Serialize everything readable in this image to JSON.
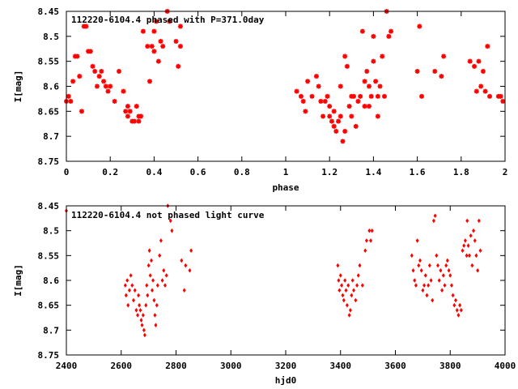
{
  "chart_data": [
    {
      "type": "scatter",
      "title": "112220-6104.4 phased with P=371.0day",
      "xlabel": "phase",
      "ylabel": "I[mag]",
      "xlim": [
        0,
        2
      ],
      "ylim": [
        8.75,
        8.45
      ],
      "y_inverted": true,
      "x_ticks": [
        "0",
        "0.2",
        "0.4",
        "0.6",
        "0.8",
        "1",
        "1.2",
        "1.4",
        "1.6",
        "1.8",
        "2"
      ],
      "y_ticks": [
        "8.45",
        "8.5",
        "8.55",
        "8.6",
        "8.65",
        "8.7",
        "8.75"
      ],
      "marker_color": "#ff0000",
      "grid": false,
      "series": [
        {
          "points": [
            [
              0.0,
              8.63
            ],
            [
              0.01,
              8.62
            ],
            [
              0.02,
              8.63
            ],
            [
              0.03,
              8.59
            ],
            [
              0.04,
              8.54
            ],
            [
              0.05,
              8.54
            ],
            [
              0.06,
              8.58
            ],
            [
              0.07,
              8.65
            ],
            [
              0.08,
              8.48
            ],
            [
              0.09,
              8.48
            ],
            [
              0.1,
              8.53
            ],
            [
              0.11,
              8.53
            ],
            [
              0.12,
              8.56
            ],
            [
              0.13,
              8.57
            ],
            [
              0.14,
              8.6
            ],
            [
              0.15,
              8.58
            ],
            [
              0.16,
              8.57
            ],
            [
              0.17,
              8.59
            ],
            [
              0.18,
              8.6
            ],
            [
              0.19,
              8.61
            ],
            [
              0.2,
              8.6
            ],
            [
              0.22,
              8.63
            ],
            [
              0.24,
              8.57
            ],
            [
              0.26,
              8.61
            ],
            [
              0.27,
              8.65
            ],
            [
              0.28,
              8.64
            ],
            [
              0.28,
              8.66
            ],
            [
              0.29,
              8.65
            ],
            [
              0.3,
              8.67
            ],
            [
              0.31,
              8.67
            ],
            [
              0.32,
              8.64
            ],
            [
              0.33,
              8.66
            ],
            [
              0.33,
              8.67
            ],
            [
              0.34,
              8.66
            ],
            [
              0.35,
              8.49
            ],
            [
              0.37,
              8.52
            ],
            [
              0.38,
              8.59
            ],
            [
              0.39,
              8.52
            ],
            [
              0.4,
              8.49
            ],
            [
              0.4,
              8.53
            ],
            [
              0.41,
              8.47
            ],
            [
              0.42,
              8.55
            ],
            [
              0.43,
              8.51
            ],
            [
              0.44,
              8.52
            ],
            [
              0.46,
              8.45
            ],
            [
              0.47,
              8.47
            ],
            [
              0.48,
              8.44
            ],
            [
              0.5,
              8.51
            ],
            [
              0.51,
              8.56
            ],
            [
              0.52,
              8.52
            ],
            [
              0.52,
              8.48
            ],
            [
              1.05,
              8.61
            ],
            [
              1.07,
              8.62
            ],
            [
              1.08,
              8.63
            ],
            [
              1.09,
              8.65
            ],
            [
              1.1,
              8.59
            ],
            [
              1.12,
              8.62
            ],
            [
              1.14,
              8.58
            ],
            [
              1.15,
              8.6
            ],
            [
              1.16,
              8.63
            ],
            [
              1.17,
              8.66
            ],
            [
              1.18,
              8.63
            ],
            [
              1.19,
              8.62
            ],
            [
              1.2,
              8.64
            ],
            [
              1.2,
              8.66
            ],
            [
              1.21,
              8.67
            ],
            [
              1.22,
              8.68
            ],
            [
              1.22,
              8.65
            ],
            [
              1.23,
              8.69
            ],
            [
              1.24,
              8.67
            ],
            [
              1.25,
              8.6
            ],
            [
              1.25,
              8.66
            ],
            [
              1.26,
              8.71
            ],
            [
              1.27,
              8.54
            ],
            [
              1.27,
              8.69
            ],
            [
              1.28,
              8.56
            ],
            [
              1.29,
              8.64
            ],
            [
              1.3,
              8.62
            ],
            [
              1.3,
              8.66
            ],
            [
              1.31,
              8.62
            ],
            [
              1.32,
              8.68
            ],
            [
              1.33,
              8.63
            ],
            [
              1.34,
              8.62
            ],
            [
              1.35,
              8.49
            ],
            [
              1.36,
              8.59
            ],
            [
              1.36,
              8.64
            ],
            [
              1.37,
              8.57
            ],
            [
              1.38,
              8.6
            ],
            [
              1.38,
              8.64
            ],
            [
              1.39,
              8.62
            ],
            [
              1.4,
              8.5
            ],
            [
              1.4,
              8.55
            ],
            [
              1.41,
              8.59
            ],
            [
              1.42,
              8.62
            ],
            [
              1.42,
              8.66
            ],
            [
              1.43,
              8.6
            ],
            [
              1.44,
              8.54
            ],
            [
              1.45,
              8.62
            ],
            [
              1.46,
              8.45
            ],
            [
              1.47,
              8.5
            ],
            [
              1.48,
              8.49
            ],
            [
              1.6,
              8.57
            ],
            [
              1.61,
              8.48
            ],
            [
              1.62,
              8.62
            ],
            [
              1.68,
              8.57
            ],
            [
              1.71,
              8.58
            ],
            [
              1.72,
              8.54
            ],
            [
              1.84,
              8.55
            ],
            [
              1.86,
              8.56
            ],
            [
              1.87,
              8.61
            ],
            [
              1.88,
              8.55
            ],
            [
              1.89,
              8.6
            ],
            [
              1.9,
              8.57
            ],
            [
              1.91,
              8.61
            ],
            [
              1.92,
              8.52
            ],
            [
              1.93,
              8.62
            ],
            [
              1.97,
              8.62
            ],
            [
              1.98,
              8.62
            ],
            [
              1.99,
              8.63
            ]
          ]
        }
      ]
    },
    {
      "type": "scatter",
      "title": "112220-6104.4 not phased light curve",
      "xlabel": "hjd0",
      "ylabel": "I[mag]",
      "xlim": [
        2400,
        4000
      ],
      "ylim": [
        8.75,
        8.45
      ],
      "y_inverted": true,
      "x_ticks": [
        "2400",
        "2600",
        "2800",
        "3000",
        "3200",
        "3400",
        "3600",
        "3800",
        "4000"
      ],
      "y_ticks": [
        "8.45",
        "8.5",
        "8.55",
        "8.6",
        "8.65",
        "8.7",
        "8.75"
      ],
      "marker_color": "#ff0000",
      "grid": false,
      "series": [
        {
          "points": [
            [
              2400,
              8.46
            ],
            [
              2615,
              8.61
            ],
            [
              2618,
              8.63
            ],
            [
              2622,
              8.6
            ],
            [
              2625,
              8.65
            ],
            [
              2630,
              8.62
            ],
            [
              2635,
              8.59
            ],
            [
              2640,
              8.61
            ],
            [
              2645,
              8.64
            ],
            [
              2650,
              8.62
            ],
            [
              2655,
              8.66
            ],
            [
              2660,
              8.67
            ],
            [
              2663,
              8.63
            ],
            [
              2666,
              8.65
            ],
            [
              2670,
              8.66
            ],
            [
              2673,
              8.68
            ],
            [
              2676,
              8.69
            ],
            [
              2680,
              8.67
            ],
            [
              2683,
              8.7
            ],
            [
              2686,
              8.71
            ],
            [
              2690,
              8.65
            ],
            [
              2693,
              8.61
            ],
            [
              2696,
              8.63
            ],
            [
              2700,
              8.57
            ],
            [
              2703,
              8.54
            ],
            [
              2706,
              8.59
            ],
            [
              2710,
              8.56
            ],
            [
              2713,
              8.62
            ],
            [
              2716,
              8.6
            ],
            [
              2720,
              8.64
            ],
            [
              2723,
              8.67
            ],
            [
              2726,
              8.69
            ],
            [
              2730,
              8.65
            ],
            [
              2733,
              8.61
            ],
            [
              2740,
              8.55
            ],
            [
              2745,
              8.52
            ],
            [
              2750,
              8.6
            ],
            [
              2755,
              8.58
            ],
            [
              2760,
              8.61
            ],
            [
              2765,
              8.59
            ],
            [
              2770,
              8.45
            ],
            [
              2780,
              8.48
            ],
            [
              2785,
              8.5
            ],
            [
              2820,
              8.56
            ],
            [
              2830,
              8.62
            ],
            [
              2835,
              8.57
            ],
            [
              2850,
              8.58
            ],
            [
              2855,
              8.54
            ],
            [
              3390,
              8.57
            ],
            [
              3393,
              8.6
            ],
            [
              3396,
              8.62
            ],
            [
              3400,
              8.59
            ],
            [
              3404,
              8.61
            ],
            [
              3408,
              8.63
            ],
            [
              3412,
              8.64
            ],
            [
              3416,
              8.6
            ],
            [
              3420,
              8.62
            ],
            [
              3424,
              8.65
            ],
            [
              3428,
              8.61
            ],
            [
              3432,
              8.67
            ],
            [
              3436,
              8.66
            ],
            [
              3440,
              8.63
            ],
            [
              3444,
              8.6
            ],
            [
              3448,
              8.62
            ],
            [
              3455,
              8.64
            ],
            [
              3460,
              8.61
            ],
            [
              3465,
              8.59
            ],
            [
              3470,
              8.57
            ],
            [
              3480,
              8.61
            ],
            [
              3490,
              8.54
            ],
            [
              3495,
              8.52
            ],
            [
              3505,
              8.5
            ],
            [
              3510,
              8.52
            ],
            [
              3515,
              8.5
            ],
            [
              3660,
              8.55
            ],
            [
              3665,
              8.58
            ],
            [
              3670,
              8.6
            ],
            [
              3675,
              8.61
            ],
            [
              3680,
              8.52
            ],
            [
              3685,
              8.57
            ],
            [
              3690,
              8.56
            ],
            [
              3695,
              8.58
            ],
            [
              3700,
              8.62
            ],
            [
              3705,
              8.61
            ],
            [
              3710,
              8.59
            ],
            [
              3715,
              8.63
            ],
            [
              3720,
              8.61
            ],
            [
              3725,
              8.57
            ],
            [
              3730,
              8.6
            ],
            [
              3735,
              8.64
            ],
            [
              3740,
              8.48
            ],
            [
              3745,
              8.47
            ],
            [
              3750,
              8.55
            ],
            [
              3755,
              8.57
            ],
            [
              3760,
              8.6
            ],
            [
              3765,
              8.58
            ],
            [
              3770,
              8.62
            ],
            [
              3775,
              8.59
            ],
            [
              3780,
              8.61
            ],
            [
              3785,
              8.57
            ],
            [
              3790,
              8.56
            ],
            [
              3795,
              8.58
            ],
            [
              3800,
              8.59
            ],
            [
              3805,
              8.61
            ],
            [
              3810,
              8.63
            ],
            [
              3815,
              8.65
            ],
            [
              3820,
              8.64
            ],
            [
              3825,
              8.66
            ],
            [
              3830,
              8.67
            ],
            [
              3835,
              8.65
            ],
            [
              3840,
              8.66
            ],
            [
              3845,
              8.54
            ],
            [
              3850,
              8.53
            ],
            [
              3855,
              8.52
            ],
            [
              3860,
              8.55
            ],
            [
              3862,
              8.48
            ],
            [
              3866,
              8.53
            ],
            [
              3870,
              8.55
            ],
            [
              3875,
              8.51
            ],
            [
              3880,
              8.57
            ],
            [
              3885,
              8.5
            ],
            [
              3890,
              8.52
            ],
            [
              3895,
              8.55
            ],
            [
              3900,
              8.58
            ],
            [
              3905,
              8.48
            ],
            [
              3910,
              8.54
            ]
          ]
        }
      ]
    }
  ]
}
